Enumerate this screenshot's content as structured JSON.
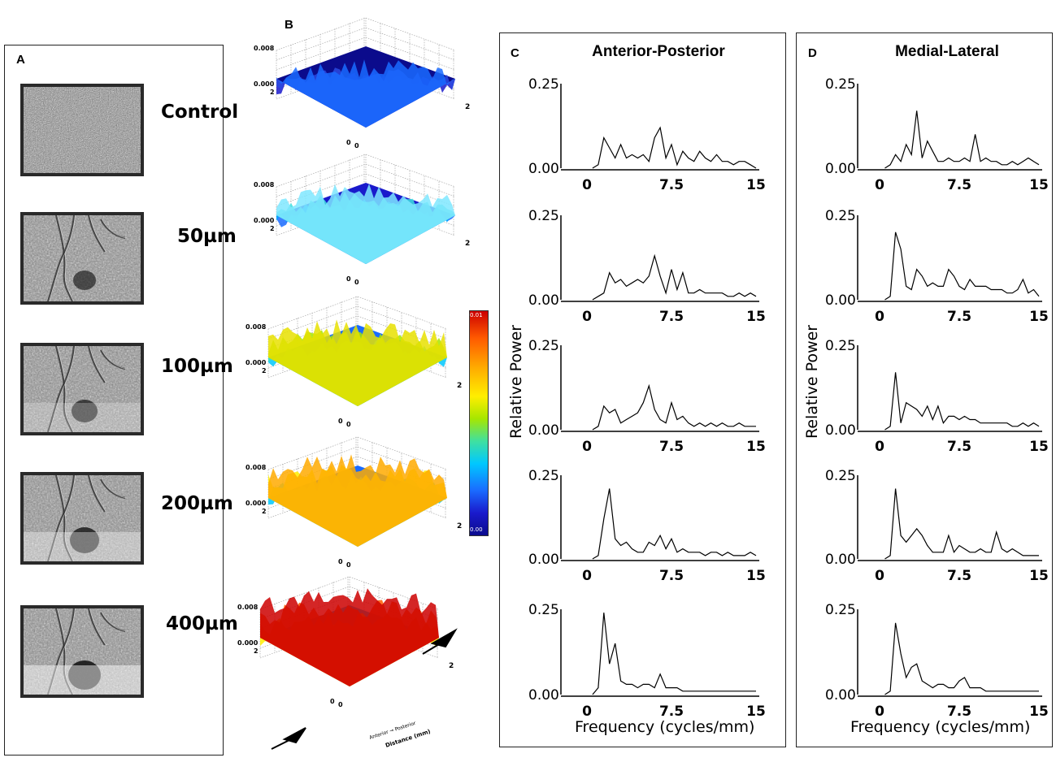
{
  "panels": {
    "a": {
      "letter": "A"
    },
    "b": {
      "letter": "B"
    },
    "c": {
      "letter": "C",
      "title": "Anterior-Posterior"
    },
    "d": {
      "letter": "D",
      "title": "Medial-Lateral"
    }
  },
  "conditions": [
    "Control",
    "50µm",
    "100µm",
    "200µm",
    "400µm"
  ],
  "surface_plots": {
    "z_ticks": [
      "0.008",
      "0.000"
    ],
    "corner_label_left": "2",
    "corner_label_right": "2",
    "origin_label": "0",
    "origin_label_2": "0",
    "axis_caption_small": "Anterior → Posterior",
    "axis_caption_distance": "Distance (mm)"
  },
  "colorbar": {
    "max_label": "0.01",
    "min_label": "0.00",
    "colors": [
      "#cc0000",
      "#ff5a00",
      "#ffaa00",
      "#ffee00",
      "#a6e600",
      "#3fe0a0",
      "#00c8ff",
      "#1a6bff",
      "#1a1acc",
      "#0b0b8c"
    ]
  },
  "axes": {
    "ylabel": "Relative Power",
    "xlabel": "Frequency (cycles/mm)",
    "y_ticks": [
      "0.25",
      "0.00"
    ],
    "x_ticks": [
      "0",
      "7.5",
      "15"
    ]
  },
  "chart_data": [
    {
      "type": "line",
      "panel": "C",
      "row": 1,
      "xlim": [
        0,
        15
      ],
      "ylim": [
        0,
        0.25
      ],
      "x": [
        0.5,
        1,
        1.5,
        2,
        2.5,
        3,
        3.5,
        4,
        4.5,
        5,
        5.5,
        6,
        6.5,
        7,
        7.5,
        8,
        8.5,
        9,
        9.5,
        10,
        10.5,
        11,
        11.5,
        12,
        12.5,
        13,
        13.5,
        14,
        14.5,
        15
      ],
      "y": [
        0.0,
        0.01,
        0.09,
        0.06,
        0.03,
        0.07,
        0.03,
        0.04,
        0.03,
        0.04,
        0.02,
        0.09,
        0.12,
        0.03,
        0.07,
        0.01,
        0.05,
        0.03,
        0.02,
        0.05,
        0.03,
        0.02,
        0.04,
        0.02,
        0.02,
        0.01,
        0.02,
        0.02,
        0.01,
        0.0
      ]
    },
    {
      "type": "line",
      "panel": "C",
      "row": 2,
      "xlim": [
        0,
        15
      ],
      "ylim": [
        0,
        0.25
      ],
      "x": [
        0.5,
        1,
        1.5,
        2,
        2.5,
        3,
        3.5,
        4,
        4.5,
        5,
        5.5,
        6,
        6.5,
        7,
        7.5,
        8,
        8.5,
        9,
        9.5,
        10,
        10.5,
        11,
        11.5,
        12,
        12.5,
        13,
        13.5,
        14,
        14.5,
        15
      ],
      "y": [
        0.0,
        0.01,
        0.02,
        0.08,
        0.05,
        0.06,
        0.04,
        0.05,
        0.06,
        0.05,
        0.07,
        0.13,
        0.07,
        0.02,
        0.09,
        0.03,
        0.08,
        0.02,
        0.02,
        0.03,
        0.02,
        0.02,
        0.02,
        0.02,
        0.01,
        0.01,
        0.02,
        0.01,
        0.02,
        0.01
      ]
    },
    {
      "type": "line",
      "panel": "C",
      "row": 3,
      "xlim": [
        0,
        15
      ],
      "ylim": [
        0,
        0.25
      ],
      "x": [
        0.5,
        1,
        1.5,
        2,
        2.5,
        3,
        3.5,
        4,
        4.5,
        5,
        5.5,
        6,
        6.5,
        7,
        7.5,
        8,
        8.5,
        9,
        9.5,
        10,
        10.5,
        11,
        11.5,
        12,
        12.5,
        13,
        13.5,
        14,
        14.5,
        15
      ],
      "y": [
        0.0,
        0.01,
        0.07,
        0.05,
        0.06,
        0.02,
        0.03,
        0.04,
        0.05,
        0.08,
        0.13,
        0.06,
        0.03,
        0.02,
        0.08,
        0.03,
        0.04,
        0.02,
        0.01,
        0.02,
        0.01,
        0.02,
        0.01,
        0.02,
        0.01,
        0.01,
        0.02,
        0.01,
        0.01,
        0.01
      ]
    },
    {
      "type": "line",
      "panel": "C",
      "row": 4,
      "xlim": [
        0,
        15
      ],
      "ylim": [
        0,
        0.25
      ],
      "x": [
        0.5,
        1,
        1.5,
        2,
        2.5,
        3,
        3.5,
        4,
        4.5,
        5,
        5.5,
        6,
        6.5,
        7,
        7.5,
        8,
        8.5,
        9,
        9.5,
        10,
        10.5,
        11,
        11.5,
        12,
        12.5,
        13,
        13.5,
        14,
        14.5,
        15
      ],
      "y": [
        0.0,
        0.01,
        0.12,
        0.21,
        0.06,
        0.04,
        0.05,
        0.03,
        0.02,
        0.02,
        0.05,
        0.04,
        0.07,
        0.03,
        0.06,
        0.02,
        0.03,
        0.02,
        0.02,
        0.02,
        0.01,
        0.02,
        0.02,
        0.01,
        0.02,
        0.01,
        0.01,
        0.01,
        0.02,
        0.01
      ]
    },
    {
      "type": "line",
      "panel": "C",
      "row": 5,
      "xlim": [
        0,
        15
      ],
      "ylim": [
        0,
        0.25
      ],
      "x": [
        0.5,
        1,
        1.5,
        2,
        2.5,
        3,
        3.5,
        4,
        4.5,
        5,
        5.5,
        6,
        6.5,
        7,
        7.5,
        8,
        8.5,
        9,
        9.5,
        10,
        10.5,
        11,
        11.5,
        12,
        12.5,
        13,
        13.5,
        14,
        14.5,
        15
      ],
      "y": [
        0.0,
        0.02,
        0.24,
        0.09,
        0.15,
        0.04,
        0.03,
        0.03,
        0.02,
        0.03,
        0.03,
        0.02,
        0.06,
        0.02,
        0.02,
        0.02,
        0.01,
        0.01,
        0.01,
        0.01,
        0.01,
        0.01,
        0.01,
        0.01,
        0.01,
        0.01,
        0.01,
        0.01,
        0.01,
        0.01
      ]
    },
    {
      "type": "line",
      "panel": "D",
      "row": 1,
      "xlim": [
        0,
        15
      ],
      "ylim": [
        0,
        0.25
      ],
      "x": [
        0.5,
        1,
        1.5,
        2,
        2.5,
        3,
        3.5,
        4,
        4.5,
        5,
        5.5,
        6,
        6.5,
        7,
        7.5,
        8,
        8.5,
        9,
        9.5,
        10,
        10.5,
        11,
        11.5,
        12,
        12.5,
        13,
        13.5,
        14,
        14.5,
        15
      ],
      "y": [
        0.0,
        0.01,
        0.04,
        0.02,
        0.07,
        0.04,
        0.17,
        0.03,
        0.08,
        0.05,
        0.02,
        0.02,
        0.03,
        0.02,
        0.02,
        0.03,
        0.02,
        0.1,
        0.02,
        0.03,
        0.02,
        0.02,
        0.01,
        0.01,
        0.02,
        0.01,
        0.02,
        0.03,
        0.02,
        0.01
      ]
    },
    {
      "type": "line",
      "panel": "D",
      "row": 2,
      "xlim": [
        0,
        15
      ],
      "ylim": [
        0,
        0.25
      ],
      "x": [
        0.5,
        1,
        1.5,
        2,
        2.5,
        3,
        3.5,
        4,
        4.5,
        5,
        5.5,
        6,
        6.5,
        7,
        7.5,
        8,
        8.5,
        9,
        9.5,
        10,
        10.5,
        11,
        11.5,
        12,
        12.5,
        13,
        13.5,
        14,
        14.5,
        15
      ],
      "y": [
        0.0,
        0.01,
        0.2,
        0.15,
        0.04,
        0.03,
        0.09,
        0.07,
        0.04,
        0.05,
        0.04,
        0.04,
        0.09,
        0.07,
        0.04,
        0.03,
        0.06,
        0.04,
        0.04,
        0.04,
        0.03,
        0.03,
        0.03,
        0.02,
        0.02,
        0.03,
        0.06,
        0.02,
        0.03,
        0.01
      ]
    },
    {
      "type": "line",
      "panel": "D",
      "row": 3,
      "xlim": [
        0,
        15
      ],
      "ylim": [
        0,
        0.25
      ],
      "x": [
        0.5,
        1,
        1.5,
        2,
        2.5,
        3,
        3.5,
        4,
        4.5,
        5,
        5.5,
        6,
        6.5,
        7,
        7.5,
        8,
        8.5,
        9,
        9.5,
        10,
        10.5,
        11,
        11.5,
        12,
        12.5,
        13,
        13.5,
        14,
        14.5,
        15
      ],
      "y": [
        0.0,
        0.01,
        0.17,
        0.02,
        0.08,
        0.07,
        0.06,
        0.04,
        0.07,
        0.03,
        0.07,
        0.02,
        0.04,
        0.04,
        0.03,
        0.04,
        0.03,
        0.03,
        0.02,
        0.02,
        0.02,
        0.02,
        0.02,
        0.02,
        0.01,
        0.01,
        0.02,
        0.01,
        0.02,
        0.01
      ]
    },
    {
      "type": "line",
      "panel": "D",
      "row": 4,
      "xlim": [
        0,
        15
      ],
      "ylim": [
        0,
        0.25
      ],
      "x": [
        0.5,
        1,
        1.5,
        2,
        2.5,
        3,
        3.5,
        4,
        4.5,
        5,
        5.5,
        6,
        6.5,
        7,
        7.5,
        8,
        8.5,
        9,
        9.5,
        10,
        10.5,
        11,
        11.5,
        12,
        12.5,
        13,
        13.5,
        14,
        14.5,
        15
      ],
      "y": [
        0.0,
        0.01,
        0.21,
        0.07,
        0.05,
        0.07,
        0.09,
        0.07,
        0.04,
        0.02,
        0.02,
        0.02,
        0.07,
        0.02,
        0.04,
        0.03,
        0.02,
        0.02,
        0.03,
        0.02,
        0.02,
        0.08,
        0.03,
        0.02,
        0.03,
        0.02,
        0.01,
        0.01,
        0.01,
        0.01
      ]
    },
    {
      "type": "line",
      "panel": "D",
      "row": 5,
      "xlim": [
        0,
        15
      ],
      "ylim": [
        0,
        0.25
      ],
      "x": [
        0.5,
        1,
        1.5,
        2,
        2.5,
        3,
        3.5,
        4,
        4.5,
        5,
        5.5,
        6,
        6.5,
        7,
        7.5,
        8,
        8.5,
        9,
        9.5,
        10,
        10.5,
        11,
        11.5,
        12,
        12.5,
        13,
        13.5,
        14,
        14.5,
        15
      ],
      "y": [
        0.0,
        0.01,
        0.21,
        0.12,
        0.05,
        0.08,
        0.09,
        0.04,
        0.03,
        0.02,
        0.03,
        0.03,
        0.02,
        0.02,
        0.04,
        0.05,
        0.02,
        0.02,
        0.02,
        0.01,
        0.01,
        0.01,
        0.01,
        0.01,
        0.01,
        0.01,
        0.01,
        0.01,
        0.01,
        0.01
      ]
    }
  ]
}
